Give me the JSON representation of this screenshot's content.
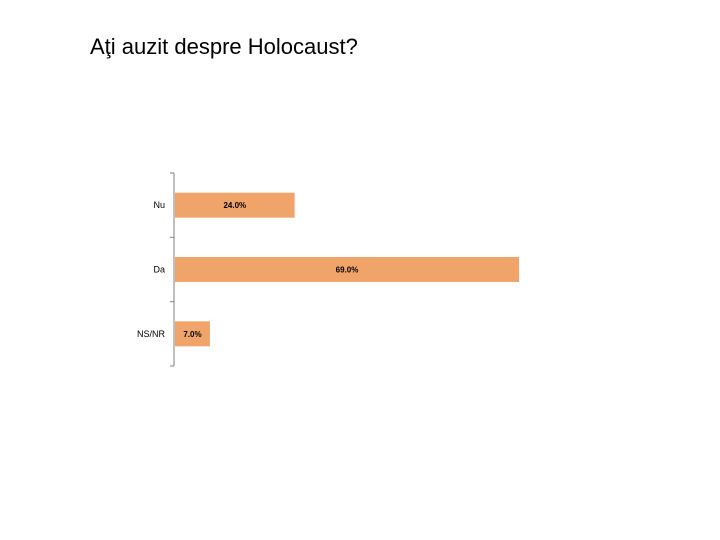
{
  "slide": {
    "title": "Aţi auzit despre Holocaust?"
  },
  "chart_data": {
    "type": "bar",
    "orientation": "horizontal",
    "categories": [
      "Nu",
      "Da",
      "NS/NR"
    ],
    "values": [
      24.0,
      69.0,
      7.0
    ],
    "value_labels": [
      "24.0%",
      "69.0%",
      "7.0%"
    ],
    "title": "",
    "xlabel": "",
    "ylabel": "",
    "xlim": [
      0,
      70
    ],
    "grid": false,
    "legend": "none",
    "bar_color": "#F0A46A",
    "axis_color": "#808080"
  }
}
